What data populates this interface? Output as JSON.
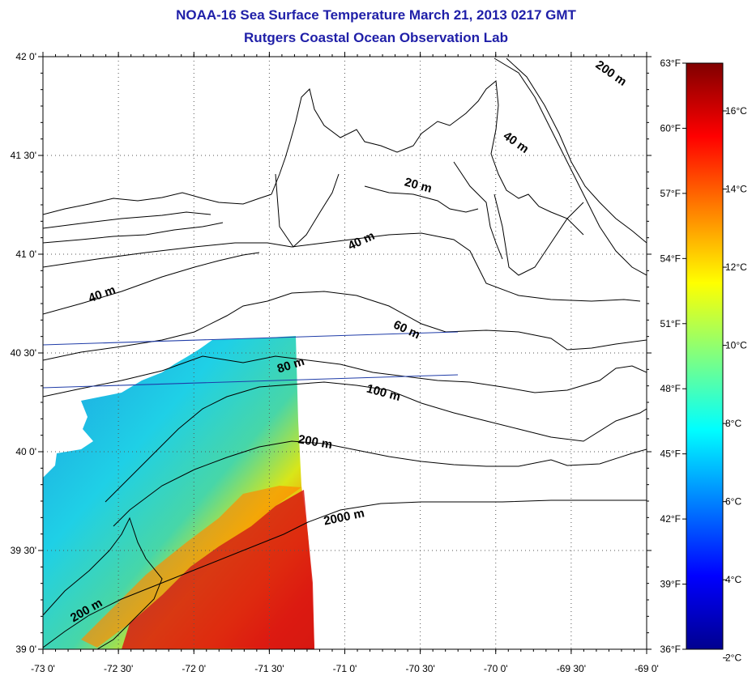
{
  "title": {
    "line1": "NOAA-16 Sea Surface Temperature March 21, 2013 0217 GMT",
    "line2": "Rutgers Coastal Ocean Observation Lab"
  },
  "map": {
    "lon_range": [
      -73.0,
      -69.0
    ],
    "lat_range": [
      39.0,
      42.0
    ],
    "lat_ticks": [
      {
        "value": 42.0,
        "label": "42 0'"
      },
      {
        "value": 41.5,
        "label": "41 30'"
      },
      {
        "value": 41.0,
        "label": "41 0'"
      },
      {
        "value": 40.5,
        "label": "40 30'"
      },
      {
        "value": 40.0,
        "label": "40 0'"
      },
      {
        "value": 39.5,
        "label": "39 30'"
      },
      {
        "value": 39.0,
        "label": "39 0'"
      }
    ],
    "lon_ticks": [
      {
        "value": -73.0,
        "label": "-73 0'"
      },
      {
        "value": -72.5,
        "label": "-72 30'"
      },
      {
        "value": -72.0,
        "label": "-72 0'"
      },
      {
        "value": -71.5,
        "label": "-71 30'"
      },
      {
        "value": -71.0,
        "label": "-71 0'"
      },
      {
        "value": -70.5,
        "label": "-70 30'"
      },
      {
        "value": -70.0,
        "label": "-70 0'"
      },
      {
        "value": -69.5,
        "label": "-69 30'"
      },
      {
        "value": -69.0,
        "label": "-69 0'"
      }
    ],
    "isobath_labels": [
      {
        "label": "200 m",
        "lon": -69.25,
        "lat": 41.9
      },
      {
        "label": "40 m",
        "lon": -69.88,
        "lat": 41.55
      },
      {
        "label": "20 m",
        "lon": -70.52,
        "lat": 41.33
      },
      {
        "label": "40 m",
        "lon": -70.88,
        "lat": 41.05
      },
      {
        "label": "40 m",
        "lon": -72.6,
        "lat": 40.78
      },
      {
        "label": "60 m",
        "lon": -70.6,
        "lat": 40.6
      },
      {
        "label": "80 m",
        "lon": -71.35,
        "lat": 40.42
      },
      {
        "label": "100 m",
        "lon": -70.75,
        "lat": 40.28
      },
      {
        "label": "200 m",
        "lon": -71.2,
        "lat": 40.03
      },
      {
        "label": "2000 m",
        "lon": -71.0,
        "lat": 39.65
      },
      {
        "label": "200 m",
        "lon": -72.7,
        "lat": 39.18
      }
    ],
    "colors": {
      "coast_line": "#000000",
      "isobath_line": "#000000",
      "track_line": "#1f3ca8",
      "grid": "#555555",
      "title": "#1f1fa8"
    }
  },
  "colorbar": {
    "celsius_ticks": [
      {
        "value": 2,
        "label": "2°C"
      },
      {
        "value": 4,
        "label": "4°C"
      },
      {
        "value": 6,
        "label": "6°C"
      },
      {
        "value": 8,
        "label": "8°C"
      },
      {
        "value": 10,
        "label": "10°C"
      },
      {
        "value": 12,
        "label": "12°C"
      },
      {
        "value": 14,
        "label": "14°C"
      },
      {
        "value": 16,
        "label": "16°C"
      }
    ],
    "fahrenheit_ticks": [
      {
        "value": 36,
        "label": "36°F"
      },
      {
        "value": 39,
        "label": "39°F"
      },
      {
        "value": 42,
        "label": "42°F"
      },
      {
        "value": 45,
        "label": "45°F"
      },
      {
        "value": 48,
        "label": "48°F"
      },
      {
        "value": 51,
        "label": "51°F"
      },
      {
        "value": 54,
        "label": "54°F"
      },
      {
        "value": 57,
        "label": "57°F"
      },
      {
        "value": 60,
        "label": "60°F"
      },
      {
        "value": 63,
        "label": "63°F"
      }
    ],
    "range_f": [
      36,
      63
    ],
    "colormap": [
      "#00008f",
      "#0000ff",
      "#0080ff",
      "#00ffff",
      "#80ff80",
      "#ffff00",
      "#ff8000",
      "#ff0000",
      "#800000"
    ]
  }
}
